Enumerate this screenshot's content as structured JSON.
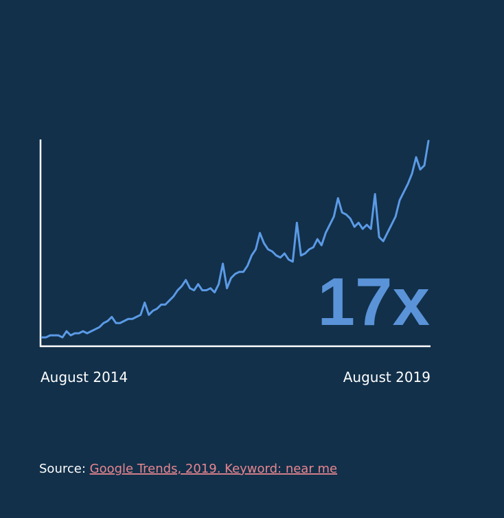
{
  "chart_data": {
    "type": "line",
    "annotation": "17x",
    "annotation_color": "#5a93d8",
    "color": "#5b9ae6",
    "categories": [
      "August 2014",
      null,
      null,
      null,
      null,
      null,
      null,
      null,
      null,
      null,
      null,
      null,
      null,
      null,
      null,
      null,
      null,
      null,
      null,
      null,
      null,
      null,
      null,
      null,
      null,
      null,
      null,
      null,
      null,
      null,
      null,
      null,
      null,
      null,
      null,
      null,
      null,
      null,
      null,
      null,
      null,
      null,
      null,
      null,
      null,
      null,
      null,
      null,
      null,
      null,
      null,
      null,
      null,
      null,
      null,
      null,
      null,
      null,
      null,
      null,
      null,
      null,
      null,
      null,
      null,
      null,
      null,
      null,
      null,
      null,
      null,
      null,
      null,
      null,
      null,
      null,
      null,
      null,
      null,
      null,
      null,
      null,
      null,
      null,
      null,
      null,
      null,
      null,
      null,
      null,
      null,
      null,
      null,
      null,
      "August 2019"
    ],
    "values": [
      4,
      4,
      5,
      5,
      5,
      4,
      7,
      5,
      6,
      6,
      7,
      6,
      7,
      8,
      9,
      11,
      12,
      14,
      11,
      11,
      12,
      13,
      13,
      14,
      15,
      21,
      15,
      17,
      18,
      20,
      20,
      22,
      24,
      27,
      29,
      32,
      28,
      27,
      30,
      27,
      27,
      28,
      26,
      30,
      40,
      28,
      33,
      35,
      36,
      36,
      39,
      44,
      47,
      55,
      50,
      47,
      46,
      44,
      43,
      45,
      42,
      41,
      60,
      44,
      45,
      47,
      48,
      52,
      49,
      55,
      59,
      63,
      72,
      65,
      64,
      62,
      58,
      60,
      57,
      59,
      57,
      74,
      53,
      51,
      55,
      59,
      63,
      71,
      75,
      79,
      84,
      92,
      86,
      88,
      100
    ],
    "ylim": [
      0,
      100
    ],
    "source_label": "Source:",
    "source_link": "Google Trends, 2019. Keyword: near me"
  }
}
